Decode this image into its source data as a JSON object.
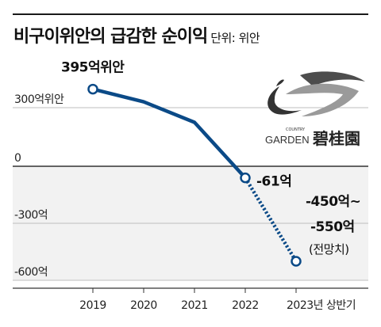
{
  "header": {
    "title": "비구이위안의 급감한 순이익",
    "unit": "단위: 위안"
  },
  "logo": {
    "small_text": "COUNTRY",
    "brand_en": "GARDEN",
    "brand_cn": "碧桂園"
  },
  "chart_data": {
    "type": "line",
    "title": "비구이위안의 급감한 순이익",
    "unit": "단위: 위안",
    "categories": [
      "2019",
      "2020",
      "2021",
      "2022",
      "2023년 상반기"
    ],
    "values": [
      395,
      330,
      225,
      -61,
      -500
    ],
    "ylim": [
      -620,
      430
    ],
    "yticks": [
      {
        "value": 300,
        "label": "300억위안"
      },
      {
        "value": 0,
        "label": "0"
      },
      {
        "value": -300,
        "label": "-300억"
      },
      {
        "value": -600,
        "label": "-600억"
      }
    ],
    "annotations": [
      {
        "index": 0,
        "lines": [
          "395억위안"
        ]
      },
      {
        "index": 3,
        "lines": [
          "-61억"
        ]
      },
      {
        "index": 4,
        "lines": [
          "-450억~",
          "-550억",
          "(전망치)"
        ]
      }
    ],
    "projected_segment": [
      3,
      4
    ],
    "colors": {
      "line": "#0b4a87",
      "negative_band": "#f2f2f2"
    },
    "grid": true
  }
}
